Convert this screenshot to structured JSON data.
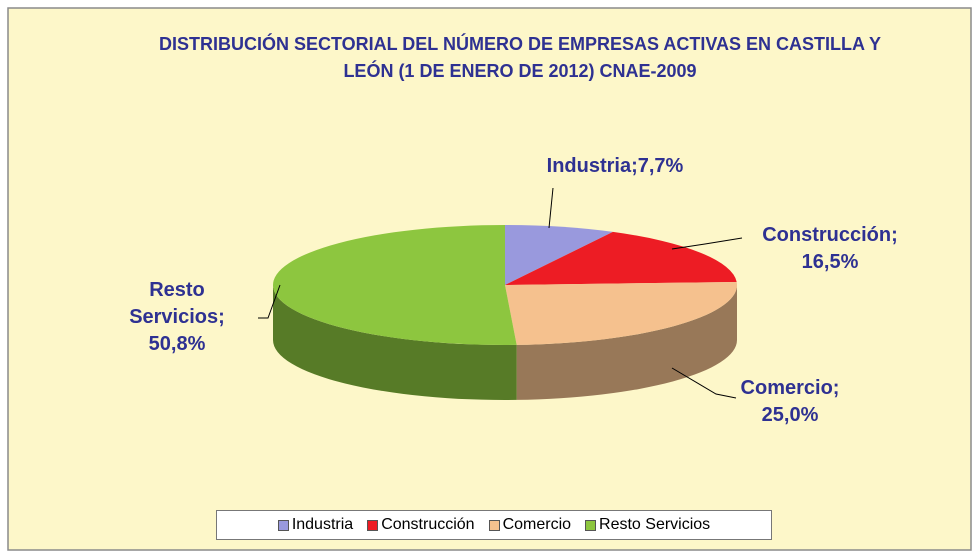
{
  "chart_data": {
    "type": "pie",
    "title": "DISTRIBUCIÓN SECTORIAL DEL NÚMERO DE EMPRESAS ACTIVAS EN CASTILLA Y LEÓN (1 DE ENERO DE 2012) CNAE-2009",
    "categories": [
      "Industria",
      "Construcción",
      "Comercio",
      "Resto Servicios"
    ],
    "values": [
      7.7,
      16.5,
      25.0,
      50.8
    ],
    "value_labels": [
      "Industria;7,7%",
      "Construcción; 16,5%",
      "Comercio; 25,0%",
      "Resto Servicios; 50,8%"
    ],
    "colors": [
      "#9999dd",
      "#ed1c24",
      "#f5c18e",
      "#8dc63f"
    ],
    "legend": "bottom"
  }
}
